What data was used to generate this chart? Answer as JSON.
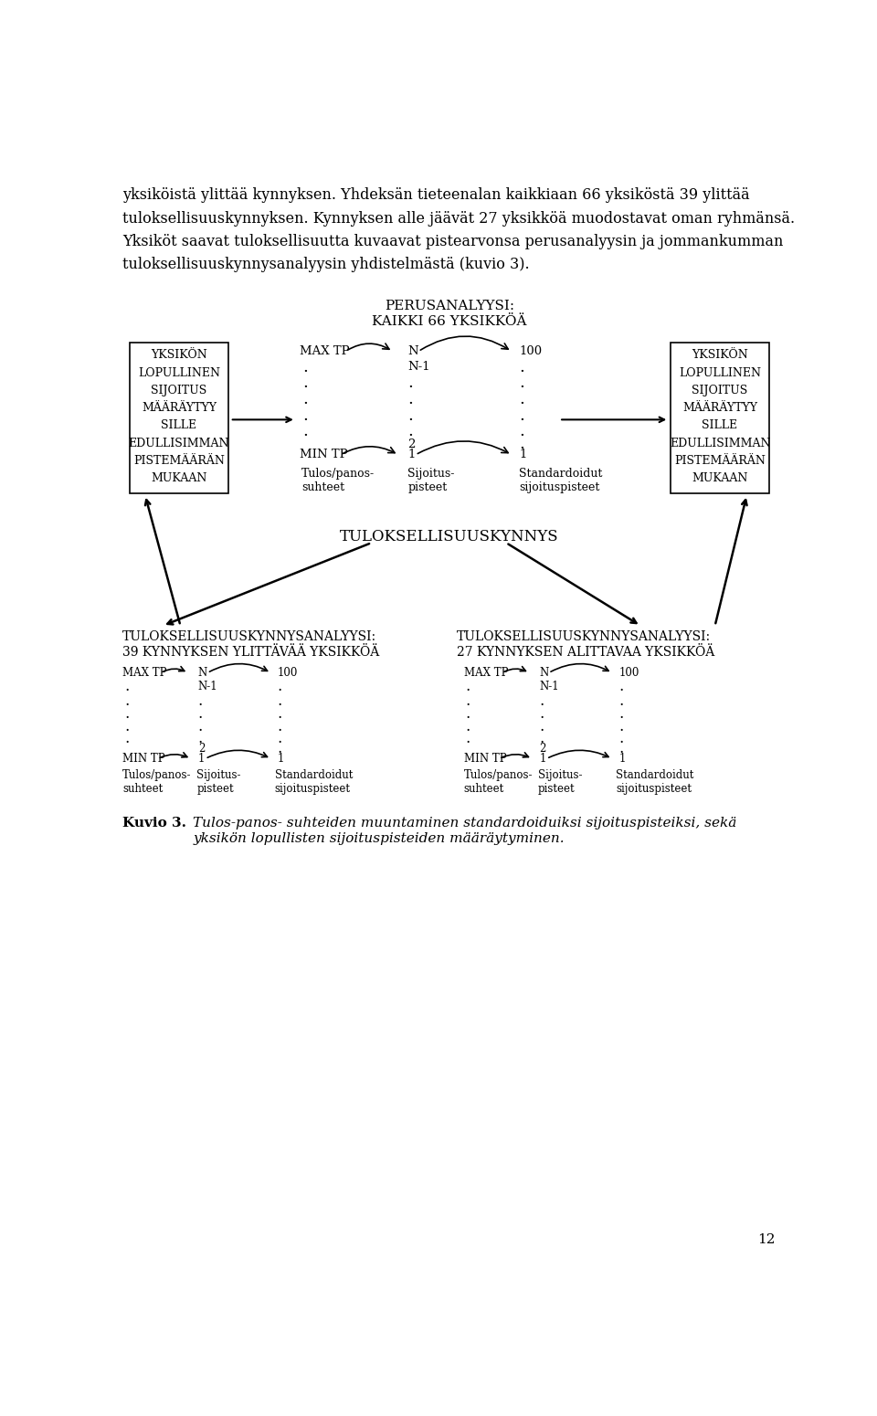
{
  "bg_color": "#ffffff",
  "text_color": "#000000",
  "page_number": "12",
  "top_text_lines": [
    "yksiköistä ylittää kynnyksen. Yhdeksän tieteenalan kaikkiaan 66 yksiköstä 39 ylittää",
    "tuloksellisuuskynnyksen. Kynnyksen alle jäävät 27 yksikköä muodostavat oman ryhmänsä.",
    "Yksiköt saavat tuloksellisuutta kuvaavat pistearvonsa perusanalyysin ja jommankumman",
    "tuloksellisuuskynnysanalyysin yhdistelmästä (kuvio 3)."
  ],
  "perus_title": "PERUSANALYYSI:\nKAIKKI 66 YKSIKKÖÄ",
  "box_lines": [
    "YKSIKÖN",
    "LOPULLINEN",
    "SIJOITUS",
    "MÄÄRÄYTYY",
    "SILLE",
    "EDULLISIMMAN",
    "PISTEMÄÄRÄN",
    "MUKAAN"
  ],
  "tuloksellisuuskynnys": "TULOKSELLISUUSKYNNYS",
  "left_analysis_title": "TULOKSELLISUUSKYNNYSANALYYSI:\n39 KYNNYKSEN YLITTÄVÄÄ YKSIKKÖÄ",
  "right_analysis_title": "TULOKSELLISUUSKYNNYSANALYYSI:\n27 KYNNYKSEN ALITTAVAA YKSIKKÖÄ",
  "caption_bold": "Kuvio 3.",
  "caption_italic": "Tulos-panos- suhteiden muuntaminen standardoiduiksi sijoituspisteiksi, sekä\nyksikön lopullisten sijoituspisteiden määräytyminen."
}
